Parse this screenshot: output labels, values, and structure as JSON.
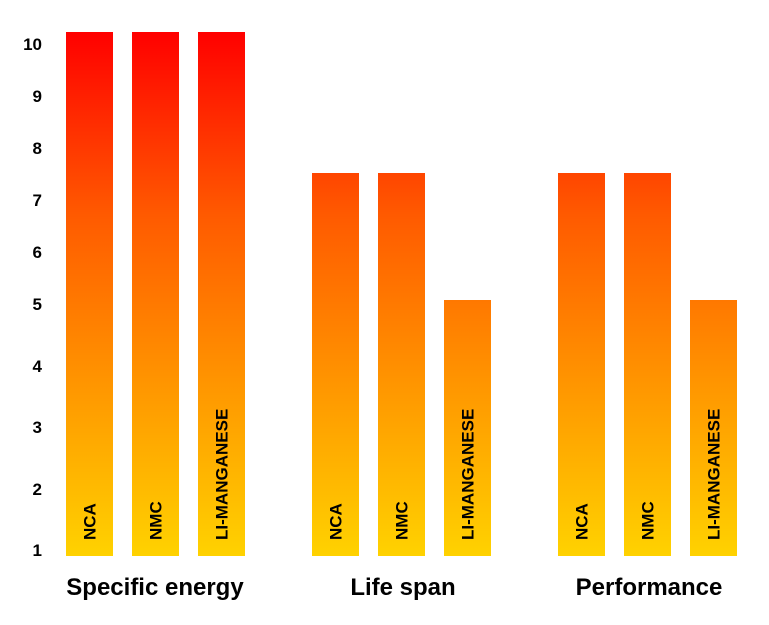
{
  "chart_data": {
    "type": "bar",
    "title": "",
    "xlabel": "",
    "ylabel": "",
    "ylim": [
      1,
      10
    ],
    "yticks": [
      1,
      2,
      3,
      4,
      5,
      6,
      7,
      8,
      9,
      10
    ],
    "grid": false,
    "legend": "none",
    "groups": [
      {
        "label": "Specific energy",
        "bars": [
          {
            "label": "NCA",
            "value": 10
          },
          {
            "label": "NMC",
            "value": 10
          },
          {
            "label": "LI-MANGANESE",
            "value": 10
          }
        ]
      },
      {
        "label": "Life span",
        "bars": [
          {
            "label": "NCA",
            "value": 7.5
          },
          {
            "label": "NMC",
            "value": 7.5
          },
          {
            "label": "LI-MANGANESE",
            "value": 5
          }
        ]
      },
      {
        "label": "Performance",
        "bars": [
          {
            "label": "NCA",
            "value": 7.5
          },
          {
            "label": "NMC",
            "value": 7.5
          },
          {
            "label": "LI-MANGANESE",
            "value": 5
          }
        ]
      }
    ],
    "colors": {
      "gradient_top": "#ff0000",
      "gradient_bottom": "#ffd200"
    }
  }
}
